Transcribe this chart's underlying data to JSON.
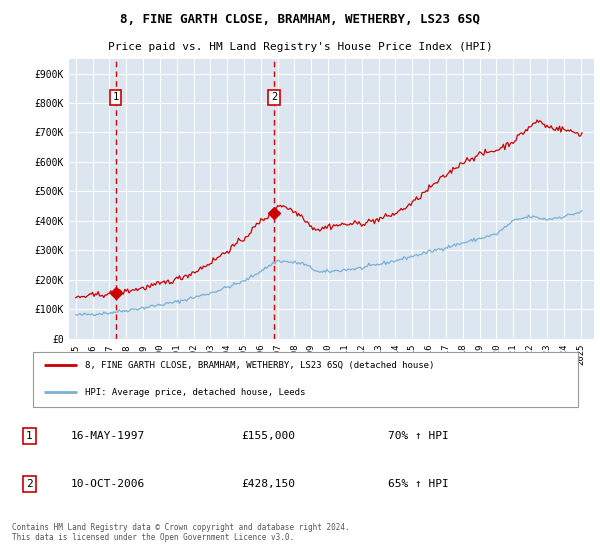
{
  "title": "8, FINE GARTH CLOSE, BRAMHAM, WETHERBY, LS23 6SQ",
  "subtitle": "Price paid vs. HM Land Registry's House Price Index (HPI)",
  "legend_line1": "8, FINE GARTH CLOSE, BRAMHAM, WETHERBY, LS23 6SQ (detached house)",
  "legend_line2": "HPI: Average price, detached house, Leeds",
  "footnote": "Contains HM Land Registry data © Crown copyright and database right 2024.\nThis data is licensed under the Open Government Licence v3.0.",
  "transaction1_date": "16-MAY-1997",
  "transaction1_price": 155000,
  "transaction1_label": "70% ↑ HPI",
  "transaction2_date": "10-OCT-2006",
  "transaction2_price": 428150,
  "transaction2_label": "65% ↑ HPI",
  "hpi_color": "#7bafd4",
  "property_color": "#cc0000",
  "vline_color": "#cc0000",
  "plot_bg_color": "#dce6f1",
  "grid_color": "#ffffff",
  "ylim": [
    0,
    950000
  ],
  "yticks": [
    0,
    100000,
    200000,
    300000,
    400000,
    500000,
    600000,
    700000,
    800000,
    900000
  ],
  "ytick_labels": [
    "£0",
    "£100K",
    "£200K",
    "£300K",
    "£400K",
    "£500K",
    "£600K",
    "£700K",
    "£800K",
    "£900K"
  ],
  "t1_x": 1997.375,
  "t1_y": 155000,
  "t2_x": 2006.79,
  "t2_y": 428150,
  "xlim_left": 1994.6,
  "xlim_right": 2025.8
}
